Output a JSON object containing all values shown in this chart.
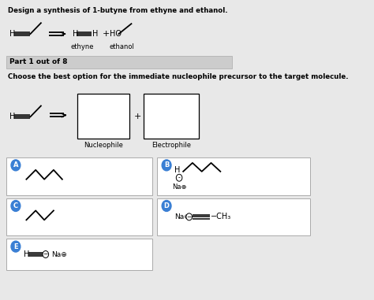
{
  "bg_color": "#e8e8e8",
  "white": "#ffffff",
  "black": "#000000",
  "light_gray": "#d4d4d4",
  "blue_circle": "#3a7fd4",
  "title": "Design a synthesis of 1-butyne from ethyne and ethanol.",
  "part_label": "Part 1 out of 8",
  "question": "Choose the best option for the immediate nucleophile precursor to the target molecule.",
  "nucleophile_label": "Nucleophile",
  "electrophile_label": "Electrophile",
  "ethyne_label": "ethyne",
  "ethanol_label": "ethanol"
}
